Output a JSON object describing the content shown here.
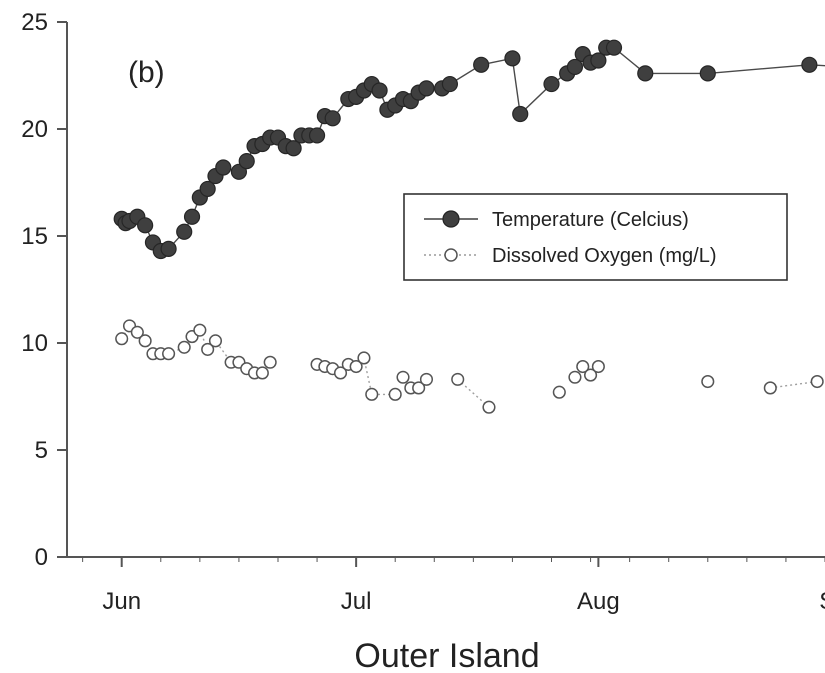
{
  "chart_data": {
    "type": "scatter",
    "panel_label": "(b)",
    "title": "",
    "xlabel": "Outer Island",
    "ylabel": "",
    "ylim": [
      0,
      25
    ],
    "yticks": [
      0,
      5,
      10,
      15,
      20,
      25
    ],
    "xlim": [
      -7,
      90
    ],
    "categories": [
      "Jun",
      "Jul",
      "Aug",
      "Sep"
    ],
    "xticks": [
      0,
      30,
      61,
      92
    ],
    "grid": false,
    "legend_position": "center-right",
    "colors": {
      "temperature": "#3f3f3f",
      "oxygen": "#8b8b8b",
      "axis": "#555555"
    },
    "series": [
      {
        "name": "Temperature (Celcius)",
        "style": "solid-line-filled-circle",
        "x": [
          0,
          0.5,
          1,
          2,
          3,
          4,
          5,
          6,
          8,
          9,
          10,
          11,
          12,
          13,
          15,
          16,
          17,
          18,
          19,
          20,
          21,
          22,
          23,
          24,
          25,
          26,
          27,
          29,
          30,
          31,
          32,
          33,
          34,
          35,
          36,
          37,
          38,
          39,
          41,
          42,
          46,
          50,
          51,
          55,
          57,
          58,
          59,
          60,
          61,
          62,
          63,
          67,
          75,
          88,
          93
        ],
        "y": [
          15.8,
          15.6,
          15.7,
          15.9,
          15.5,
          14.7,
          14.3,
          14.4,
          15.2,
          15.9,
          16.8,
          17.2,
          17.8,
          18.2,
          18.0,
          18.5,
          19.2,
          19.3,
          19.6,
          19.6,
          19.2,
          19.1,
          19.7,
          19.7,
          19.7,
          20.6,
          20.5,
          21.4,
          21.5,
          21.8,
          22.1,
          21.8,
          20.9,
          21.1,
          21.4,
          21.3,
          21.7,
          21.9,
          21.9,
          22.1,
          23.0,
          23.3,
          20.7,
          22.1,
          22.6,
          22.9,
          23.5,
          23.1,
          23.2,
          23.8,
          23.8,
          22.6,
          22.6,
          23.0,
          22.9
        ],
        "segments": [
          [
            0,
            54
          ]
        ]
      },
      {
        "name": "Dissolved Oxygen (mg/L)",
        "style": "dotted-line-open-circle",
        "x": [
          0,
          1,
          2,
          3,
          4,
          5,
          6,
          8,
          9,
          10,
          11,
          12,
          14,
          15,
          16,
          17,
          18,
          19,
          25,
          26,
          27,
          28,
          29,
          30,
          31,
          32,
          35,
          36,
          37,
          38,
          39,
          43,
          47,
          56,
          58,
          59,
          60,
          61,
          75,
          83,
          89
        ],
        "y": [
          10.2,
          10.8,
          10.5,
          10.1,
          9.5,
          9.5,
          9.5,
          9.8,
          10.3,
          10.6,
          9.7,
          10.1,
          9.1,
          9.1,
          8.8,
          8.6,
          8.6,
          9.1,
          9.0,
          8.9,
          8.8,
          8.6,
          9.0,
          8.9,
          9.3,
          7.6,
          7.6,
          8.4,
          7.9,
          7.9,
          8.3,
          8.3,
          7.0,
          7.7,
          8.4,
          8.9,
          8.5,
          8.9,
          8.2,
          7.9,
          8.2
        ],
        "segments": [
          [
            0,
            2
          ],
          [
            4,
            13
          ],
          [
            14,
            17
          ],
          [
            18,
            22
          ],
          [
            23,
            26
          ],
          [
            28,
            30
          ],
          [
            31,
            32
          ],
          [
            39,
            40
          ]
        ]
      }
    ]
  }
}
